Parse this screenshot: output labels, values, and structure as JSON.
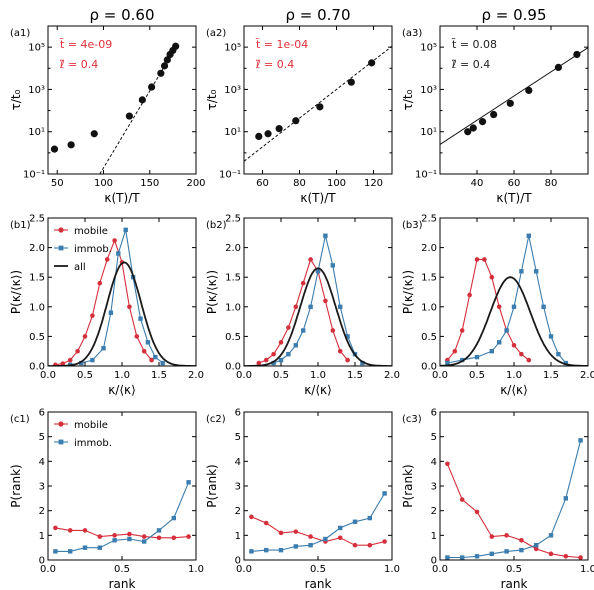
{
  "colors": {
    "mobile": "#d62f3c",
    "immob": "#3b7dae",
    "all": "#1a1a1a",
    "black": "#111111",
    "red_text": "#e0303a"
  },
  "chart_data": [
    {
      "id": "a1",
      "type": "scatter",
      "panel_label": "(a1)",
      "title": "ρ = 0.60",
      "xlabel": "κ(T)/T",
      "ylabel": "τ/t₀",
      "yscale": "log",
      "xlim": [
        40,
        200
      ],
      "ylim": [
        0.1,
        1000000
      ],
      "xticks": [
        50,
        100,
        150,
        200
      ],
      "xticklabels": [
        "50",
        "100",
        "150",
        "200"
      ],
      "yticks": [
        0.1,
        10,
        1000,
        100000
      ],
      "yticklabels": [
        "10⁻¹",
        "10¹",
        "10³",
        "10⁵"
      ],
      "x": [
        47,
        65,
        90,
        128,
        142,
        152,
        162,
        166,
        169,
        172,
        175,
        178
      ],
      "y": [
        1.5,
        2.4,
        8,
        55,
        320,
        1300,
        5800,
        13000,
        25000,
        45000,
        70000,
        110000
      ],
      "fit": {
        "style": "dashed",
        "color": "#111111",
        "points": [
          [
            96,
            0.1
          ],
          [
            180,
            130000
          ]
        ]
      },
      "annotations": [
        "t̃ = 4e-09",
        "ℓ̃ = 0.4"
      ],
      "annotation_color": "#e0303a"
    },
    {
      "id": "a2",
      "type": "scatter",
      "panel_label": "(a2)",
      "title": "ρ = 0.70",
      "xlabel": "κ(T)/T",
      "ylabel": "τ/t₀",
      "yscale": "log",
      "xlim": [
        50,
        130
      ],
      "ylim": [
        0.1,
        1000000
      ],
      "xticks": [
        60,
        80,
        100,
        120
      ],
      "xticklabels": [
        "60",
        "80",
        "100",
        "120"
      ],
      "yticks": [
        0.1,
        10,
        1000,
        100000
      ],
      "yticklabels": [
        "10⁻¹",
        "10¹",
        "10³",
        "10⁵"
      ],
      "x": [
        58,
        63,
        69,
        78,
        91,
        108,
        119
      ],
      "y": [
        6,
        8,
        14,
        33,
        150,
        2200,
        18000
      ],
      "fit": {
        "style": "dashed",
        "color": "#111111",
        "points": [
          [
            50,
            0.4
          ],
          [
            130,
            110000
          ]
        ]
      },
      "annotations": [
        "t̃ = 1e-04",
        "ℓ̃ = 0.4"
      ],
      "annotation_color": "#e0303a"
    },
    {
      "id": "a3",
      "type": "scatter",
      "panel_label": "(a3)",
      "title": "ρ = 0.95",
      "xlabel": "κ(T)/T",
      "ylabel": "τ/t₀",
      "yscale": "log",
      "xlim": [
        20,
        100
      ],
      "ylim": [
        0.1,
        1000000
      ],
      "xticks": [
        40,
        60,
        80
      ],
      "xticklabels": [
        "40",
        "60",
        "80"
      ],
      "yticks": [
        0.1,
        10,
        1000,
        100000
      ],
      "yticklabels": [
        "10⁻¹",
        "10¹",
        "10³",
        "10⁵"
      ],
      "x": [
        35,
        38,
        43,
        49,
        58,
        68,
        84,
        94
      ],
      "y": [
        10,
        15,
        30,
        65,
        220,
        900,
        11000,
        45000
      ],
      "fit": {
        "style": "solid",
        "color": "#111111",
        "points": [
          [
            20,
            2.5
          ],
          [
            100,
            95000
          ]
        ]
      },
      "annotations": [
        "t̃ = 0.08",
        "ℓ̃ = 0.4"
      ],
      "annotation_color": "#222222"
    },
    {
      "id": "b1",
      "type": "line",
      "panel_label": "(b1)",
      "xlabel": "κ/⟨κ⟩",
      "ylabel": "P(κ/⟨κ⟩)",
      "xlim": [
        0,
        2
      ],
      "ylim": [
        0,
        2.5
      ],
      "xticks": [
        0,
        0.5,
        1,
        1.5,
        2
      ],
      "xticklabels": [
        "0.0",
        "0.5",
        "1.0",
        "1.5",
        "2.0"
      ],
      "yticks": [
        0,
        0.5,
        1,
        1.5,
        2,
        2.5
      ],
      "yticklabels": [
        "0.0",
        "0.5",
        "1.0",
        "1.5",
        "2.0",
        "2.5"
      ],
      "legend": [
        "mobile",
        "immob.",
        "all"
      ],
      "series": [
        {
          "name": "mobile",
          "marker": "circle",
          "x": [
            0.1,
            0.2,
            0.3,
            0.4,
            0.5,
            0.6,
            0.7,
            0.8,
            0.9,
            1.0,
            1.1,
            1.2,
            1.3,
            1.4
          ],
          "y": [
            0.02,
            0.04,
            0.1,
            0.25,
            0.5,
            0.85,
            1.4,
            1.8,
            2.12,
            1.75,
            1.0,
            0.5,
            0.25,
            0.1
          ]
        },
        {
          "name": "immob.",
          "marker": "square",
          "x": [
            0.3,
            0.45,
            0.6,
            0.75,
            0.85,
            0.95,
            1.05,
            1.15,
            1.25,
            1.35,
            1.45,
            1.55
          ],
          "y": [
            0.02,
            0.05,
            0.1,
            0.3,
            0.9,
            1.9,
            2.3,
            1.5,
            0.8,
            0.4,
            0.15,
            0.05
          ]
        },
        {
          "name": "all",
          "marker": "none",
          "gaussian": {
            "mu": 1.03,
            "sigma": 0.23,
            "peak": 1.75
          }
        }
      ]
    },
    {
      "id": "b2",
      "type": "line",
      "panel_label": "(b2)",
      "xlabel": "κ/⟨κ⟩",
      "ylabel": "P(κ/⟨κ⟩)",
      "xlim": [
        0,
        2
      ],
      "ylim": [
        0,
        2.5
      ],
      "xticks": [
        0,
        0.5,
        1,
        1.5,
        2
      ],
      "xticklabels": [
        "0.0",
        "0.5",
        "1.0",
        "1.5",
        "2.0"
      ],
      "yticks": [
        0,
        0.5,
        1,
        1.5,
        2,
        2.5
      ],
      "yticklabels": [
        "0.0",
        "0.5",
        "1.0",
        "1.5",
        "2.0",
        "2.5"
      ],
      "series": [
        {
          "name": "mobile",
          "marker": "circle",
          "x": [
            0.2,
            0.3,
            0.4,
            0.5,
            0.6,
            0.7,
            0.8,
            0.9,
            1.0,
            1.1,
            1.2,
            1.3,
            1.4
          ],
          "y": [
            0.05,
            0.1,
            0.2,
            0.4,
            0.65,
            1.0,
            1.4,
            1.8,
            1.6,
            1.1,
            0.6,
            0.25,
            0.1
          ]
        },
        {
          "name": "immob.",
          "marker": "square",
          "x": [
            0.4,
            0.5,
            0.6,
            0.7,
            0.8,
            0.9,
            1.0,
            1.1,
            1.2,
            1.3,
            1.4,
            1.5,
            1.6
          ],
          "y": [
            0.05,
            0.1,
            0.2,
            0.35,
            0.6,
            1.0,
            1.6,
            2.2,
            1.7,
            1.0,
            0.5,
            0.2,
            0.05
          ]
        },
        {
          "name": "all",
          "marker": "none",
          "gaussian": {
            "mu": 1.0,
            "sigma": 0.24,
            "peak": 1.65
          }
        }
      ]
    },
    {
      "id": "b3",
      "type": "line",
      "panel_label": "(b3)",
      "xlabel": "κ/⟨κ⟩",
      "ylabel": "P(κ/⟨κ⟩)",
      "xlim": [
        0,
        2
      ],
      "ylim": [
        0,
        2.5
      ],
      "xticks": [
        0,
        0.5,
        1,
        1.5,
        2
      ],
      "xticklabels": [
        "0.0",
        "0.5",
        "1.0",
        "1.5",
        "2.0"
      ],
      "yticks": [
        0,
        0.5,
        1,
        1.5,
        2,
        2.5
      ],
      "yticklabels": [
        "0.0",
        "0.5",
        "1.0",
        "1.5",
        "2.0",
        "2.5"
      ],
      "series": [
        {
          "name": "mobile",
          "marker": "circle",
          "x": [
            0.1,
            0.2,
            0.3,
            0.4,
            0.5,
            0.6,
            0.7,
            0.8,
            0.9,
            1.0,
            1.1,
            1.2
          ],
          "y": [
            0.1,
            0.25,
            0.6,
            1.2,
            1.8,
            1.8,
            1.5,
            1.0,
            0.6,
            0.35,
            0.2,
            0.1
          ]
        },
        {
          "name": "immob.",
          "marker": "square",
          "x": [
            0.1,
            0.3,
            0.5,
            0.7,
            0.8,
            0.9,
            1.0,
            1.1,
            1.2,
            1.3,
            1.4,
            1.5,
            1.6,
            1.7
          ],
          "y": [
            0.05,
            0.1,
            0.15,
            0.25,
            0.4,
            0.6,
            1.0,
            1.6,
            2.2,
            1.6,
            1.0,
            0.5,
            0.2,
            0.05
          ]
        },
        {
          "name": "all",
          "marker": "none",
          "gaussian": {
            "mu": 0.95,
            "sigma": 0.27,
            "peak": 1.5
          }
        }
      ]
    },
    {
      "id": "c1",
      "type": "line",
      "panel_label": "(c1)",
      "xlabel": "rank",
      "ylabel": "P(rank)",
      "xlim": [
        0,
        1
      ],
      "ylim": [
        0,
        6
      ],
      "xticks": [
        0,
        0.5,
        1
      ],
      "xticklabels": [
        "0.0",
        "0.5",
        "1.0"
      ],
      "yticks": [
        0,
        1,
        2,
        3,
        4,
        5,
        6
      ],
      "yticklabels": [
        "0",
        "1",
        "2",
        "3",
        "4",
        "5",
        "6"
      ],
      "legend": [
        "mobile",
        "immob."
      ],
      "series": [
        {
          "name": "mobile",
          "marker": "circle",
          "x": [
            0.05,
            0.15,
            0.25,
            0.35,
            0.45,
            0.55,
            0.65,
            0.75,
            0.85,
            0.95
          ],
          "y": [
            1.3,
            1.2,
            1.2,
            0.95,
            1.0,
            1.05,
            0.95,
            0.9,
            0.9,
            0.95
          ]
        },
        {
          "name": "immob.",
          "marker": "square",
          "x": [
            0.05,
            0.15,
            0.25,
            0.35,
            0.45,
            0.55,
            0.65,
            0.75,
            0.85,
            0.95
          ],
          "y": [
            0.35,
            0.35,
            0.5,
            0.5,
            0.8,
            0.85,
            0.75,
            1.2,
            1.7,
            3.15
          ]
        }
      ]
    },
    {
      "id": "c2",
      "type": "line",
      "panel_label": "(c2)",
      "xlabel": "rank",
      "ylabel": "P(rank)",
      "xlim": [
        0,
        1
      ],
      "ylim": [
        0,
        6
      ],
      "xticks": [
        0,
        0.5,
        1
      ],
      "xticklabels": [
        "0.0",
        "0.5",
        "1.0"
      ],
      "yticks": [
        0,
        1,
        2,
        3,
        4,
        5,
        6
      ],
      "yticklabels": [
        "0",
        "1",
        "2",
        "3",
        "4",
        "5",
        "6"
      ],
      "series": [
        {
          "name": "mobile",
          "marker": "circle",
          "x": [
            0.05,
            0.15,
            0.25,
            0.35,
            0.45,
            0.55,
            0.65,
            0.75,
            0.85,
            0.95
          ],
          "y": [
            1.75,
            1.5,
            1.1,
            1.15,
            0.95,
            0.75,
            0.9,
            0.6,
            0.6,
            0.75
          ]
        },
        {
          "name": "immob.",
          "marker": "square",
          "x": [
            0.05,
            0.15,
            0.25,
            0.35,
            0.45,
            0.55,
            0.65,
            0.75,
            0.85,
            0.95
          ],
          "y": [
            0.35,
            0.4,
            0.4,
            0.55,
            0.6,
            0.85,
            1.3,
            1.55,
            1.7,
            2.7
          ]
        }
      ]
    },
    {
      "id": "c3",
      "type": "line",
      "panel_label": "(c3)",
      "xlabel": "rank",
      "ylabel": "P(rank)",
      "xlim": [
        0,
        1
      ],
      "ylim": [
        0,
        6
      ],
      "xticks": [
        0,
        0.5,
        1
      ],
      "xticklabels": [
        "0.0",
        "0.5",
        "1.0"
      ],
      "yticks": [
        0,
        1,
        2,
        3,
        4,
        5,
        6
      ],
      "yticklabels": [
        "0",
        "1",
        "2",
        "3",
        "4",
        "5",
        "6"
      ],
      "series": [
        {
          "name": "mobile",
          "marker": "circle",
          "x": [
            0.05,
            0.15,
            0.25,
            0.35,
            0.45,
            0.55,
            0.65,
            0.75,
            0.85,
            0.95
          ],
          "y": [
            3.9,
            2.45,
            1.95,
            0.95,
            1.0,
            0.8,
            0.45,
            0.25,
            0.15,
            0.1
          ]
        },
        {
          "name": "immob.",
          "marker": "square",
          "x": [
            0.05,
            0.15,
            0.25,
            0.35,
            0.45,
            0.55,
            0.65,
            0.75,
            0.85,
            0.95
          ],
          "y": [
            0.1,
            0.1,
            0.15,
            0.25,
            0.35,
            0.4,
            0.6,
            1.0,
            2.5,
            4.85
          ]
        }
      ]
    }
  ]
}
